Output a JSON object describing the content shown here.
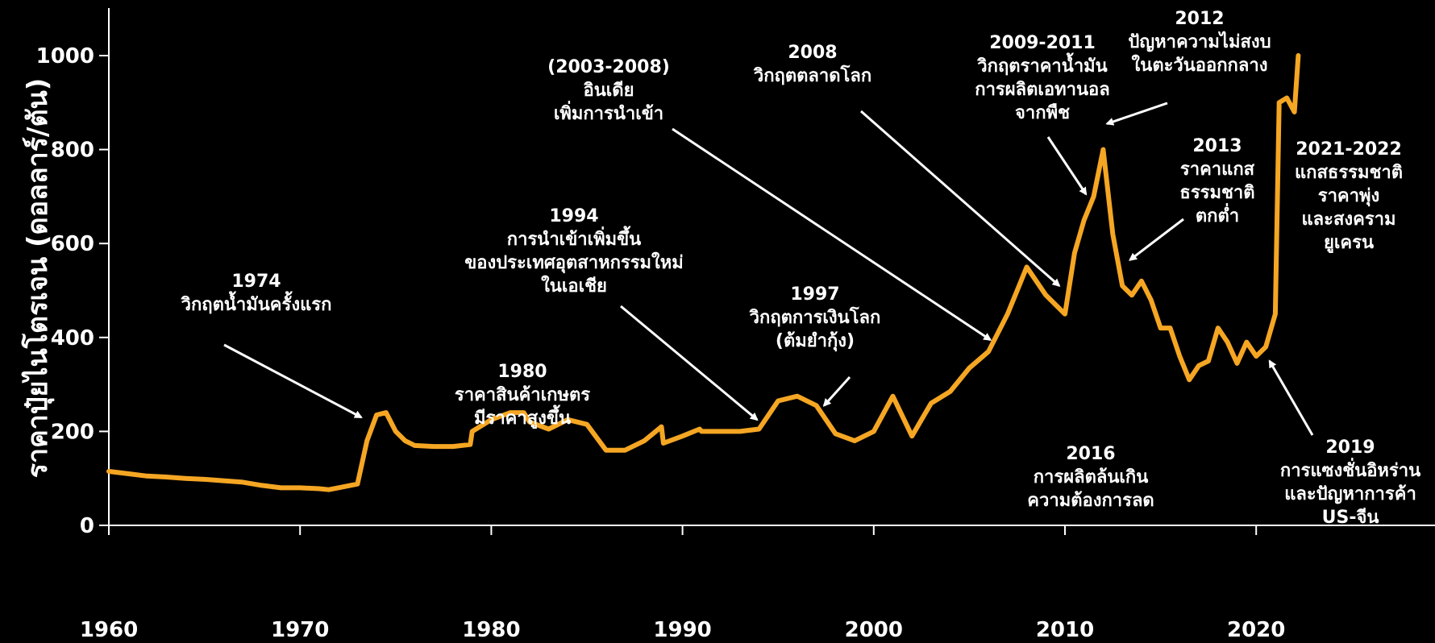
{
  "chart_data": {
    "type": "line",
    "ylabel": "ราคาปุ๋ยไนโตรเจน (ดอลลาร์/ตัน)",
    "xlabel": "",
    "xlim": [
      1960,
      2027
    ],
    "ylim": [
      0,
      1060
    ],
    "x_ticks": [
      "1960",
      "1970",
      "1980",
      "1990",
      "2000",
      "2010",
      "2020"
    ],
    "y_ticks": [
      "0",
      "200",
      "400",
      "600",
      "800",
      "1000"
    ],
    "grid": false,
    "colors": {
      "line": "#f5a623",
      "text": "#ffffff",
      "arrow": "#ffffff",
      "background": "#000000"
    },
    "series": [
      {
        "x": [
          1960,
          1961,
          1962,
          1963,
          1964,
          1965,
          1966,
          1967,
          1968,
          1969,
          1970,
          1971,
          1971.5,
          1972,
          1973,
          1973.5,
          1974,
          1974.5,
          1975,
          1975.5,
          1976,
          1977,
          1978,
          1978.9,
          1979,
          1980,
          1981,
          1981.7,
          1982,
          1983,
          1984,
          1985,
          1986,
          1987,
          1988,
          1988.9,
          1989,
          1990,
          1990.9,
          1991,
          1992,
          1993,
          1994,
          1995,
          1996,
          1997,
          1998,
          1999,
          2000,
          2001,
          2002,
          2003,
          2004,
          2005,
          2006,
          2007,
          2008,
          2009,
          2010,
          2010.5,
          2011,
          2011.5,
          2012,
          2012.5,
          2013,
          2013.5,
          2014,
          2014.5,
          2015,
          2015.5,
          2016,
          2016.5,
          2017,
          2017.5,
          2018,
          2018.5,
          2019,
          2019.5,
          2020,
          2020.5,
          2021,
          2021.2,
          2021.6,
          2022,
          2022.2
        ],
        "y": [
          115,
          110,
          105,
          103,
          100,
          98,
          95,
          92,
          85,
          80,
          80,
          78,
          76,
          80,
          88,
          180,
          235,
          240,
          200,
          180,
          170,
          168,
          168,
          172,
          200,
          225,
          240,
          240,
          220,
          205,
          225,
          215,
          160,
          160,
          180,
          210,
          175,
          190,
          205,
          200,
          200,
          200,
          205,
          265,
          275,
          255,
          195,
          180,
          200,
          275,
          190,
          260,
          285,
          335,
          370,
          450,
          550,
          490,
          450,
          580,
          650,
          700,
          800,
          620,
          510,
          490,
          520,
          480,
          420,
          420,
          360,
          310,
          340,
          350,
          420,
          390,
          345,
          390,
          360,
          380,
          450,
          900,
          910,
          880,
          1000
        ]
      }
    ],
    "annotations": [
      {
        "lines": [
          "1974",
          "วิกฤตน้ำมันครั้งแรก"
        ],
        "target": [
          1973.2,
          230
        ]
      },
      {
        "lines": [
          "1980",
          "ราคาสินค้าเกษตร",
          "มีราคาสูงขึ้น"
        ]
      },
      {
        "lines": [
          "1994",
          "การนำเข้าเพิ่มขึ้น",
          "ของประเทศอุตสาหกรรมใหม่",
          "ในเอเชีย"
        ],
        "target": [
          1993.9,
          225
        ]
      },
      {
        "lines": [
          "1997",
          "วิกฤตการเงินโลก",
          "(ต้มยำกุ้ง)"
        ],
        "target": [
          1997.4,
          255
        ]
      },
      {
        "lines": [
          "(2003-2008)",
          "อินเดีย",
          "เพิ่มการนำเข้า"
        ],
        "target": [
          2006.1,
          395
        ]
      },
      {
        "lines": [
          "2008",
          "วิกฤตตลาดโลก"
        ],
        "target": [
          2009.7,
          510
        ]
      },
      {
        "lines": [
          "2009-2011",
          "วิกฤตราคาน้ำมัน",
          "การผลิตเอทานอล",
          "จากพืช"
        ],
        "target": [
          2011.1,
          705
        ]
      },
      {
        "lines": [
          "2012",
          "ปัญหาความไม่สงบ",
          "ในตะวันออกกลาง"
        ],
        "target": [
          2012.2,
          855
        ]
      },
      {
        "lines": [
          "2013",
          "ราคาแกส",
          "ธรรมชาติ",
          "ตกต่ำ"
        ],
        "target": [
          2013.4,
          565
        ]
      },
      {
        "lines": [
          "2016",
          "การผลิตล้นเกิน",
          "ความต้องการลด"
        ]
      },
      {
        "lines": [
          "2021-2022",
          "แกสธรรมชาติ",
          "ราคาพุ่ง",
          "และสงคราม",
          "ยูเครน"
        ]
      },
      {
        "lines": [
          "2019",
          "การแซงชั่นอิหร่าน",
          "และปัญหาการค้า",
          "US-จีน"
        ],
        "target": [
          2020.7,
          350
        ]
      }
    ]
  }
}
